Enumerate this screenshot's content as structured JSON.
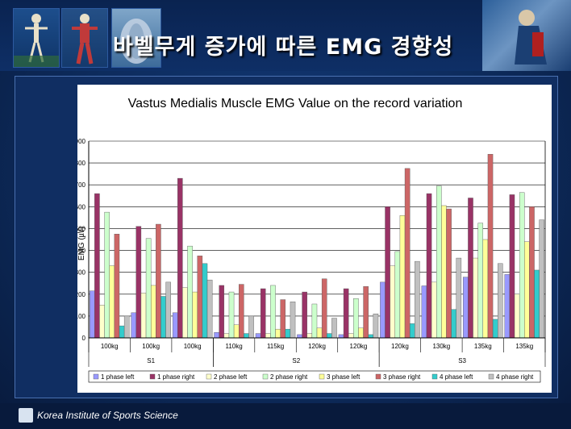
{
  "header": {
    "title": "바벨무게 증가에 따른 EMG 경향성"
  },
  "footer": {
    "org": "Korea Institute of Sports Science"
  },
  "chart_data": {
    "type": "bar",
    "title": "Vastus Medialis Muscle EMG Value on the record variation",
    "ylabel": "EMG (㎶)",
    "ylim": [
      0,
      900
    ],
    "yticks": [
      0,
      100,
      200,
      300,
      400,
      500,
      600,
      700,
      800,
      900
    ],
    "grid": true,
    "legend": "bottom",
    "categories": [
      "100kg",
      "100kg",
      "100kg",
      "110kg",
      "115kg",
      "120kg",
      "120kg",
      "120kg",
      "130kg",
      "135kg",
      "135kg"
    ],
    "groups": [
      {
        "label": "S1",
        "count": 3
      },
      {
        "label": "S2",
        "count": 4
      },
      {
        "label": "S3",
        "count": 4
      }
    ],
    "series": [
      {
        "name": "1 phase left",
        "color": "#9999ff",
        "values": [
          215,
          115,
          115,
          25,
          20,
          15,
          15,
          255,
          238,
          278,
          290
        ]
      },
      {
        "name": "1 phase right",
        "color": "#993366",
        "values": [
          660,
          510,
          730,
          240,
          225,
          210,
          225,
          600,
          660,
          640,
          655
        ]
      },
      {
        "name": "2 phase left",
        "color": "#ffffcc",
        "values": [
          150,
          205,
          230,
          20,
          20,
          20,
          20,
          330,
          255,
          365,
          200
        ]
      },
      {
        "name": "2 phase right",
        "color": "#ccffcc",
        "values": [
          575,
          455,
          420,
          210,
          240,
          155,
          180,
          395,
          695,
          525,
          665
        ]
      },
      {
        "name": "3 phase left",
        "color": "#ffff99",
        "values": [
          330,
          240,
          210,
          60,
          40,
          45,
          45,
          560,
          605,
          450,
          440
        ]
      },
      {
        "name": "3 phase right",
        "color": "#cc6666",
        "values": [
          475,
          520,
          375,
          245,
          175,
          270,
          235,
          775,
          590,
          840,
          600
        ]
      },
      {
        "name": "4 phase left",
        "color": "#33cccc",
        "values": [
          55,
          190,
          340,
          20,
          40,
          20,
          15,
          65,
          130,
          85,
          310
        ]
      },
      {
        "name": "4 phase right",
        "color": "#c0c0c0",
        "values": [
          100,
          255,
          265,
          100,
          165,
          90,
          110,
          350,
          365,
          340,
          540
        ]
      }
    ]
  }
}
